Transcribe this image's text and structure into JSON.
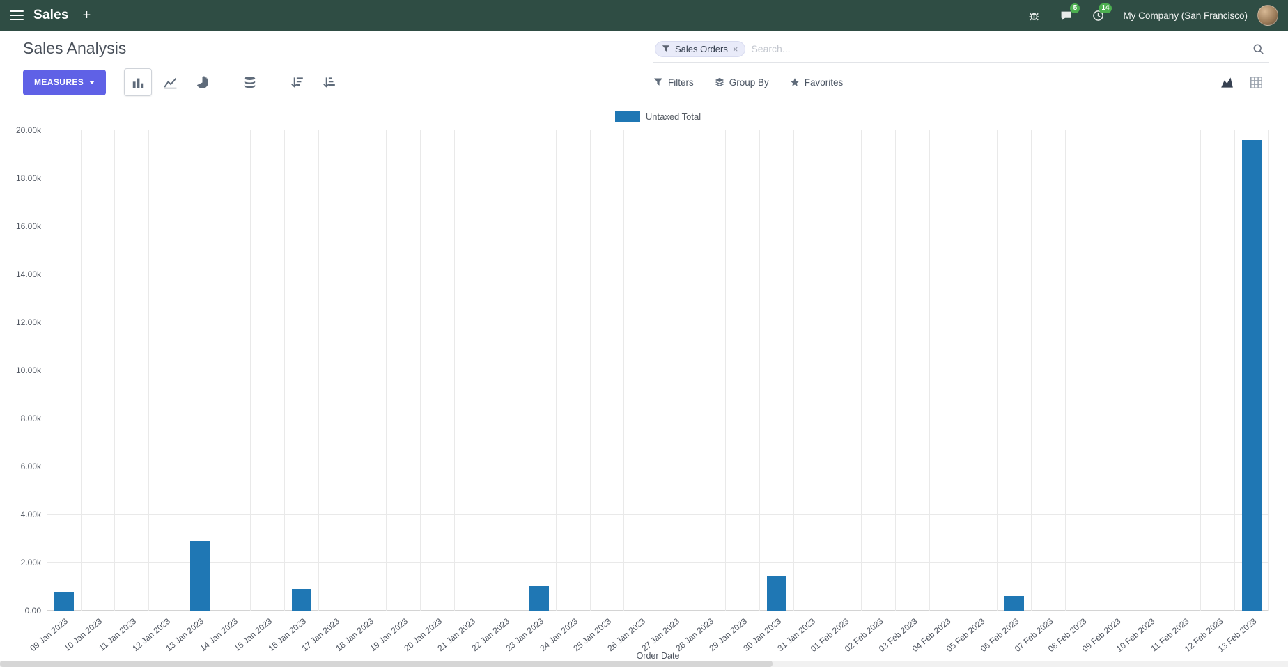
{
  "colors": {
    "navbar_bg": "#2f4d44",
    "badge": "#4caf50",
    "accent": "#5f61e6"
  },
  "navbar": {
    "app_name": "Sales",
    "plus_label": "+",
    "messages_badge": "5",
    "activities_badge": "14",
    "company": "My Company (San Francisco)"
  },
  "control_panel": {
    "title": "Sales Analysis",
    "measures_label": "MEASURES",
    "search": {
      "facet": "Sales Orders",
      "facet_remove": "×",
      "placeholder": "Search..."
    },
    "filters_label": "Filters",
    "group_by_label": "Group By",
    "favorites_label": "Favorites"
  },
  "chart_data": {
    "type": "bar",
    "title": "",
    "legend_position": "top",
    "grid": true,
    "xlabel": "Order Date",
    "ylabel": "",
    "ylim": [
      0,
      20000
    ],
    "y_ticks": [
      "0.00",
      "2.00k",
      "4.00k",
      "6.00k",
      "8.00k",
      "10.00k",
      "12.00k",
      "14.00k",
      "16.00k",
      "18.00k",
      "20.00k"
    ],
    "bar_color": "#1f77b4",
    "categories": [
      "09 Jan 2023",
      "10 Jan 2023",
      "11 Jan 2023",
      "12 Jan 2023",
      "13 Jan 2023",
      "14 Jan 2023",
      "15 Jan 2023",
      "16 Jan 2023",
      "17 Jan 2023",
      "18 Jan 2023",
      "19 Jan 2023",
      "20 Jan 2023",
      "21 Jan 2023",
      "22 Jan 2023",
      "23 Jan 2023",
      "24 Jan 2023",
      "25 Jan 2023",
      "26 Jan 2023",
      "27 Jan 2023",
      "28 Jan 2023",
      "29 Jan 2023",
      "30 Jan 2023",
      "31 Jan 2023",
      "01 Feb 2023",
      "02 Feb 2023",
      "03 Feb 2023",
      "04 Feb 2023",
      "05 Feb 2023",
      "06 Feb 2023",
      "07 Feb 2023",
      "08 Feb 2023",
      "09 Feb 2023",
      "10 Feb 2023",
      "11 Feb 2023",
      "12 Feb 2023",
      "13 Feb 2023"
    ],
    "series": [
      {
        "name": "Untaxed Total",
        "values": [
          780,
          0,
          0,
          0,
          2900,
          0,
          0,
          890,
          0,
          0,
          0,
          0,
          0,
          0,
          1050,
          0,
          0,
          0,
          0,
          0,
          0,
          1450,
          0,
          0,
          0,
          0,
          0,
          0,
          620,
          0,
          0,
          0,
          0,
          0,
          0,
          19600
        ]
      }
    ]
  }
}
